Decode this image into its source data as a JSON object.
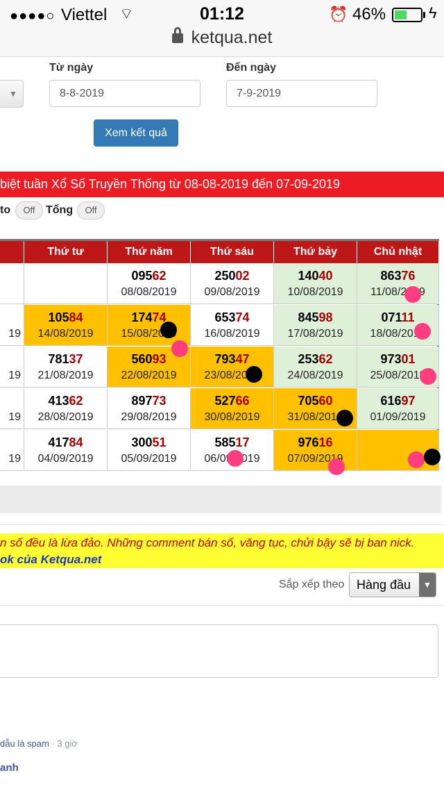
{
  "status_bar": {
    "signal_dots": "●●●●○",
    "carrier": "Viettel",
    "wifi_icon": "wifi-icon",
    "time": "01:12",
    "alarm_icon": "alarm-icon",
    "battery_percent": "46%",
    "battery_level": 0.46,
    "charging_icon": "bolt-icon"
  },
  "browser": {
    "url": "ketqua.net"
  },
  "form": {
    "from_label": "Từ ngày",
    "from_value": "8-8-2019",
    "to_label": "Đến ngày",
    "to_value": "7-9-2019",
    "submit_label": "Xem kết quả"
  },
  "title_band": "biệt tuần Xổ Số Truyền Thống từ 08-08-2019 đến 07-09-2019",
  "toggles": {
    "loto_label": "to",
    "loto_state": "Off",
    "tong_label": "Tổng",
    "tong_state": "Off"
  },
  "table": {
    "headers": [
      "",
      "Thứ tư",
      "Thứ năm",
      "Thứ sáu",
      "Thứ bảy",
      "Chủ nhật"
    ],
    "rows": [
      [
        {
          "head": "",
          "tail": "",
          "date": "",
          "bg": "white"
        },
        {
          "head": "",
          "tail": "",
          "date": "",
          "bg": "white"
        },
        {
          "head": "095",
          "tail": "62",
          "date": "08/08/2019",
          "bg": "white"
        },
        {
          "head": "250",
          "tail": "02",
          "date": "09/08/2019",
          "bg": "white"
        },
        {
          "head": "140",
          "tail": "40",
          "date": "10/08/2019",
          "bg": "green"
        },
        {
          "head": "863",
          "tail": "76",
          "date": "11/08/2019",
          "bg": "green"
        }
      ],
      [
        {
          "head": "",
          "tail": "",
          "date": "19",
          "bg": "white"
        },
        {
          "head": "105",
          "tail": "84",
          "date": "14/08/2019",
          "bg": "orange"
        },
        {
          "head": "174",
          "tail": "74",
          "date": "15/08/2019",
          "bg": "orange"
        },
        {
          "head": "653",
          "tail": "74",
          "date": "16/08/2019",
          "bg": "white"
        },
        {
          "head": "845",
          "tail": "98",
          "date": "17/08/2019",
          "bg": "green"
        },
        {
          "head": "071",
          "tail": "11",
          "date": "18/08/2019",
          "bg": "green"
        }
      ],
      [
        {
          "head": "",
          "tail": "",
          "date": "19",
          "bg": "white"
        },
        {
          "head": "781",
          "tail": "37",
          "date": "21/08/2019",
          "bg": "white"
        },
        {
          "head": "560",
          "tail": "93",
          "date": "22/08/2019",
          "bg": "orange"
        },
        {
          "head": "793",
          "tail": "47",
          "date": "23/08/2019",
          "bg": "orange"
        },
        {
          "head": "253",
          "tail": "62",
          "date": "24/08/2019",
          "bg": "green"
        },
        {
          "head": "973",
          "tail": "01",
          "date": "25/08/2019",
          "bg": "green"
        }
      ],
      [
        {
          "head": "",
          "tail": "",
          "date": "19",
          "bg": "white"
        },
        {
          "head": "413",
          "tail": "62",
          "date": "28/08/2019",
          "bg": "white"
        },
        {
          "head": "897",
          "tail": "73",
          "date": "29/08/2019",
          "bg": "white"
        },
        {
          "head": "527",
          "tail": "66",
          "date": "30/08/2019",
          "bg": "orange"
        },
        {
          "head": "705",
          "tail": "60",
          "date": "31/08/2019",
          "bg": "orange"
        },
        {
          "head": "616",
          "tail": "97",
          "date": "01/09/2019",
          "bg": "green"
        }
      ],
      [
        {
          "head": "",
          "tail": "",
          "date": "19",
          "bg": "white"
        },
        {
          "head": "417",
          "tail": "84",
          "date": "04/09/2019",
          "bg": "white"
        },
        {
          "head": "300",
          "tail": "51",
          "date": "05/09/2019",
          "bg": "white"
        },
        {
          "head": "585",
          "tail": "17",
          "date": "06/09/2019",
          "bg": "white"
        },
        {
          "head": "976",
          "tail": "16",
          "date": "07/09/2019",
          "bg": "orange"
        },
        {
          "head": "",
          "tail": "",
          "date": "",
          "bg": "orange"
        }
      ]
    ]
  },
  "colors": {
    "header_red": "#bd1717",
    "title_red": "#ed1c24",
    "highlight_orange": "#ffc000",
    "weekend_green": "#dff0d8",
    "tail_red": "#a50000",
    "marker_pink": "#ff3d7f",
    "marker_black": "#000000"
  },
  "notice": {
    "line1": "n số đều là lừa đảo. Những comment bán số, văng tục, chửi bậy sẽ bị ban nick.",
    "line2": "ok của Ketqua.net"
  },
  "comments": {
    "sort_label": "Sắp xếp theo",
    "sort_value": "Hàng đầu",
    "meta_text": " dẫu là spam",
    "meta_time": " · 3 giờ",
    "name": "anh"
  }
}
